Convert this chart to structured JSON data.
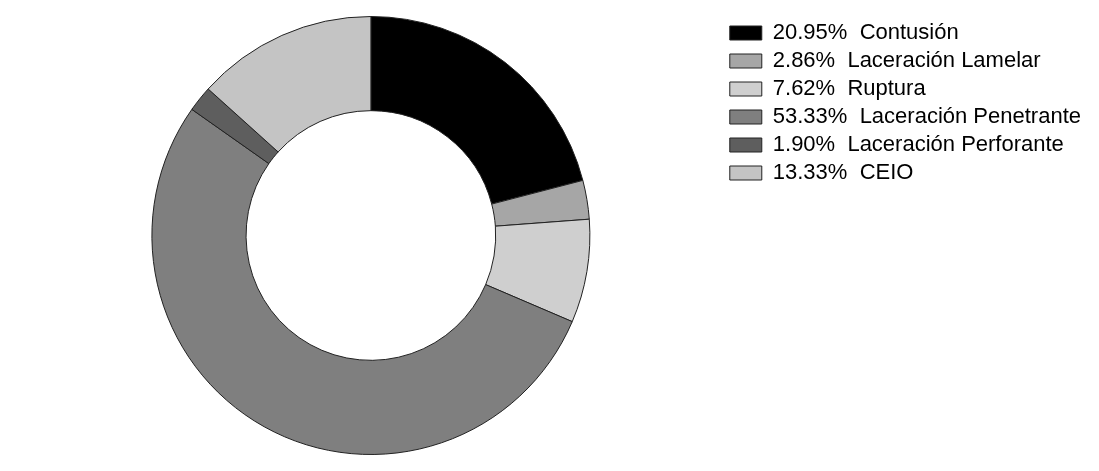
{
  "chart_data": {
    "type": "donut",
    "categories": [
      "Contusión",
      "Laceración Lamelar",
      "Ruptura",
      "Laceración Penetrante",
      "Laceración Perforante",
      "CEIO"
    ],
    "values": [
      20.95,
      2.86,
      7.62,
      53.33,
      1.9,
      13.33
    ],
    "value_labels": [
      "20.95%",
      "2.86%",
      "7.62%",
      "53.33%",
      "1.90%",
      "13.33%"
    ],
    "colors": [
      "#000000",
      "#a6a6a6",
      "#cfcfcf",
      "#7f7f7f",
      "#5e5e5e",
      "#c4c4c4"
    ],
    "legend": "top right"
  }
}
